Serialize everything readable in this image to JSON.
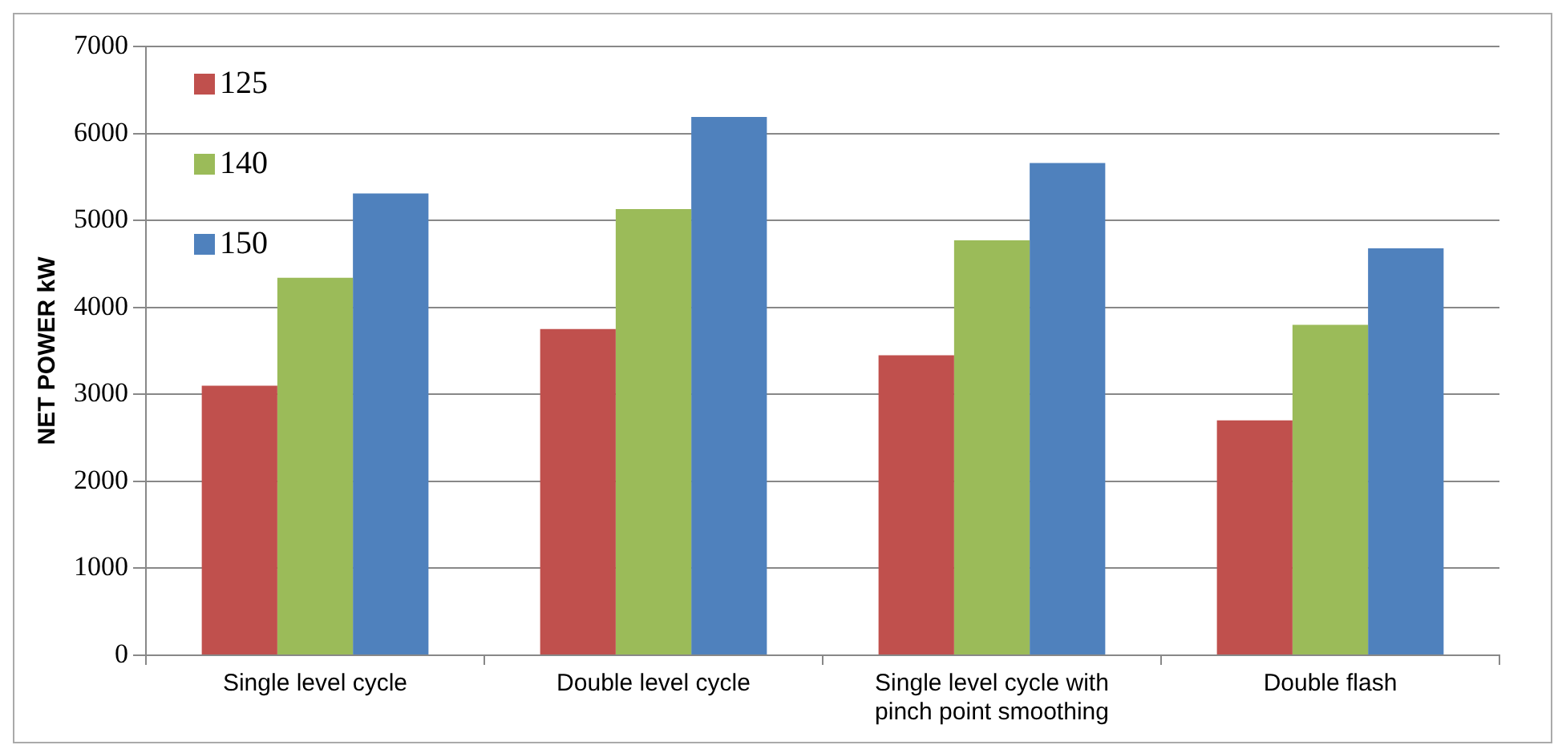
{
  "chart_data": {
    "type": "bar",
    "ylabel": "NET POWER kW",
    "categories": [
      "Single level cycle",
      "Double level cycle",
      "Single level cycle with pinch point smoothing",
      "Double flash"
    ],
    "series": [
      {
        "name": "125",
        "color": "#c0504d",
        "values": [
          3100,
          3750,
          3450,
          2700
        ]
      },
      {
        "name": "140",
        "color": "#9bbb59",
        "values": [
          4340,
          5130,
          4770,
          3800
        ]
      },
      {
        "name": "150",
        "color": "#4f81bd",
        "values": [
          5310,
          6190,
          5660,
          4680
        ]
      }
    ],
    "ylim": [
      0,
      7000
    ],
    "yticks": [
      0,
      1000,
      2000,
      3000,
      4000,
      5000,
      6000,
      7000
    ],
    "grid": "y",
    "legend": "top left"
  }
}
